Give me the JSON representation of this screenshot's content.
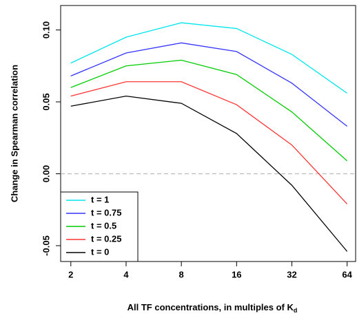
{
  "chart_data": {
    "type": "line",
    "x_label": "All TF concentrations, in multiples of K",
    "x_label_subscript": "d",
    "y_label": "Change in Spearman correlation",
    "x": [
      2,
      4,
      8,
      16,
      32,
      64
    ],
    "xlim": [
      1.76,
      71.2
    ],
    "x_log_base": 2,
    "xticks": [
      2,
      4,
      8,
      16,
      32,
      64
    ],
    "ylim": [
      -0.061,
      0.117
    ],
    "yticks": [
      -0.05,
      {
        "value": 0,
        "label": "0.00"
      },
      0.05,
      {
        "value": 0.1,
        "label": "0.10"
      }
    ],
    "reference_line": {
      "value": 0,
      "color": "#bbbbbb"
    },
    "legend": "bottom-left",
    "series": [
      {
        "name": "t = 1",
        "color": "#00e5ee",
        "values": [
          0.077,
          0.095,
          0.105,
          0.101,
          0.083,
          0.056
        ]
      },
      {
        "name": "t = 0.75",
        "color": "#3333ff",
        "values": [
          0.068,
          0.084,
          0.091,
          0.085,
          0.063,
          0.033
        ]
      },
      {
        "name": "t = 0.5",
        "color": "#00cc00",
        "values": [
          0.06,
          0.075,
          0.079,
          0.069,
          0.043,
          0.009
        ]
      },
      {
        "name": "t = 0.25",
        "color": "#ff3333",
        "values": [
          0.054,
          0.064,
          0.064,
          0.048,
          0.02,
          -0.021
        ]
      },
      {
        "name": "t = 0",
        "color": "#000000",
        "values": [
          0.047,
          0.054,
          0.049,
          0.028,
          -0.008,
          -0.054
        ]
      }
    ]
  }
}
